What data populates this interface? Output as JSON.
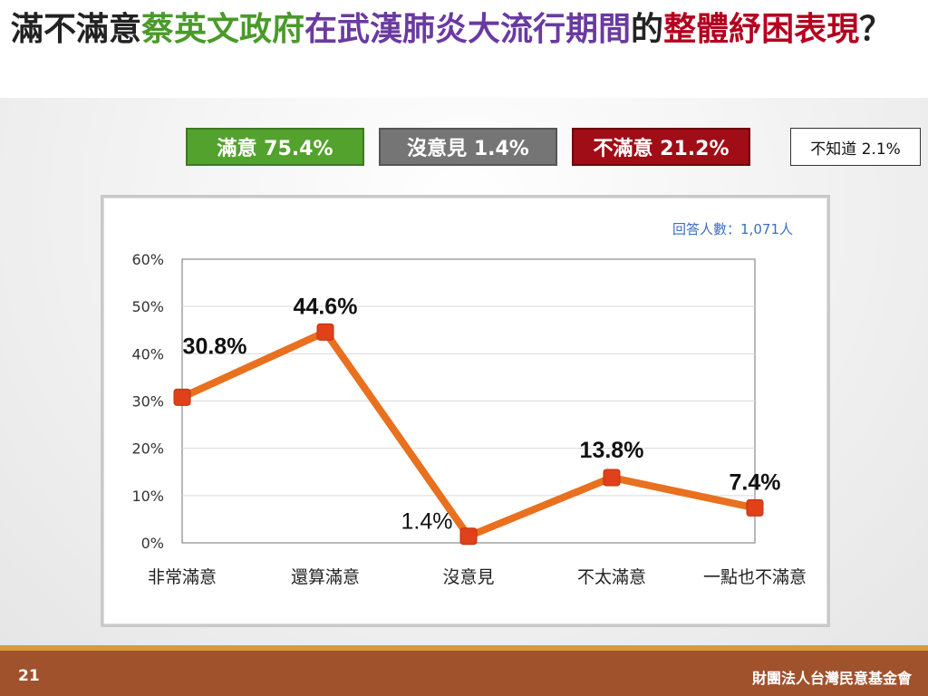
{
  "title": {
    "part1": "滿不滿意",
    "part2": "蔡英文政府",
    "part3": "在武漢肺炎大流行期間",
    "part4": "的",
    "part5": "整體紓困表現",
    "part6": "？"
  },
  "colors": {
    "title_black": "#222222",
    "title_green": "#4a9a2a",
    "title_purple": "#6a3aa0",
    "title_red": "#b3001f",
    "satisfied": "#53a22e",
    "no_opinion": "#757575",
    "dissatisfied": "#a00d16",
    "line": "#e8701f",
    "marker": "#e0401a",
    "footer": "#a0522d",
    "footer_stripe": "#d89a3c"
  },
  "summary": {
    "satisfied": "滿意 75.4%",
    "no_opinion": "沒意見 1.4%",
    "dissatisfied": "不滿意 21.2%",
    "dont_know": "不知道 2.1%"
  },
  "respondents": "回答人數：1,071人",
  "chart_data": {
    "type": "line",
    "categories": [
      "非常滿意",
      "還算滿意",
      "沒意見",
      "不太滿意",
      "一點也不滿意"
    ],
    "values": [
      30.8,
      44.6,
      1.4,
      13.8,
      7.4
    ],
    "data_labels": [
      "30.8%",
      "44.6%",
      "1.4%",
      "13.8%",
      "7.4%"
    ],
    "ylim": [
      0,
      60
    ],
    "yticks": [
      0,
      10,
      20,
      30,
      40,
      50,
      60
    ],
    "ytick_labels": [
      "0%",
      "10%",
      "20%",
      "30%",
      "40%",
      "50%",
      "60%"
    ],
    "grid": true,
    "legend": "none"
  },
  "footer": {
    "page_number": "21",
    "org": "財團法人台灣民意基金會"
  }
}
